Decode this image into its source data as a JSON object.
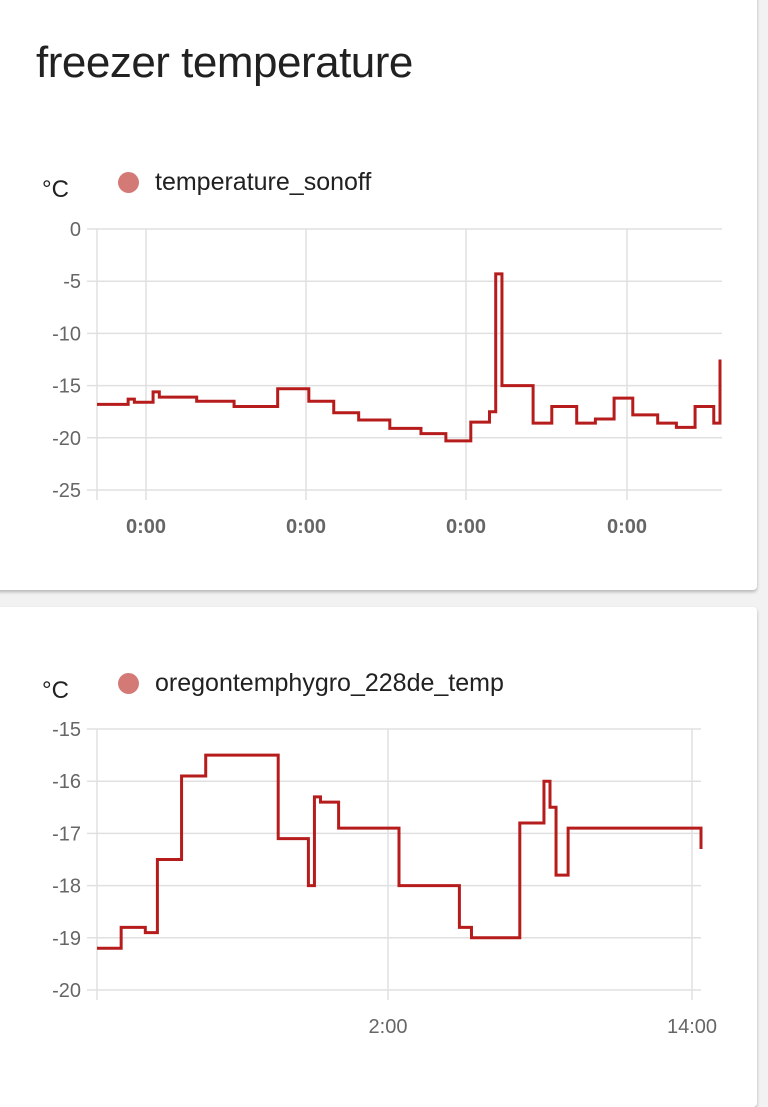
{
  "card1": {
    "title": "freezer temperature",
    "unit": "°C",
    "legend": "temperature_sonoff",
    "yticks": [
      "0",
      "-5",
      "-10",
      "-15",
      "-20",
      "-25"
    ],
    "xticks": [
      "0:00",
      "0:00",
      "0:00",
      "0:00"
    ]
  },
  "card2": {
    "unit": "°C",
    "legend": "oregontemphygro_228de_temp",
    "yticks": [
      "-15",
      "-16",
      "-17",
      "-18",
      "-19",
      "-20"
    ],
    "xticks": [
      "2:00",
      "14:00"
    ]
  },
  "colors": {
    "line": "#b71c1c",
    "legend_dot": "#d47a76",
    "grid": "#e0e0e0"
  },
  "chart_data": [
    {
      "type": "line",
      "title": "freezer temperature",
      "series": [
        {
          "name": "temperature_sonoff",
          "color": "#b71c1c",
          "x_frac": [
            0.0,
            0.04,
            0.05,
            0.06,
            0.09,
            0.1,
            0.16,
            0.22,
            0.29,
            0.34,
            0.38,
            0.42,
            0.47,
            0.52,
            0.56,
            0.6,
            0.63,
            0.64,
            0.65,
            0.7,
            0.73,
            0.77,
            0.8,
            0.83,
            0.86,
            0.9,
            0.93,
            0.96,
            0.99,
            1.0
          ],
          "values": [
            -16.8,
            -16.8,
            -16.3,
            -16.6,
            -15.6,
            -16.1,
            -16.5,
            -17.0,
            -15.3,
            -16.5,
            -17.6,
            -18.3,
            -19.1,
            -19.6,
            -20.3,
            -18.5,
            -17.5,
            -4.3,
            -15.0,
            -18.6,
            -17.0,
            -18.6,
            -18.2,
            -16.2,
            -17.8,
            -18.6,
            -19.0,
            -17.0,
            -18.6,
            -12.5
          ]
        }
      ],
      "ylabel": "°C",
      "ylim": [
        -25,
        0
      ],
      "yticks": [
        0,
        -5,
        -10,
        -15,
        -20,
        -25
      ],
      "xticklabels": [
        "0:00",
        "0:00",
        "0:00",
        "0:00"
      ],
      "grid": true,
      "legend_position": "top"
    },
    {
      "type": "line",
      "series": [
        {
          "name": "oregontemphygro_228de_temp",
          "color": "#b71c1c",
          "x_frac": [
            0.0,
            0.02,
            0.04,
            0.08,
            0.1,
            0.14,
            0.18,
            0.22,
            0.3,
            0.35,
            0.36,
            0.37,
            0.4,
            0.5,
            0.6,
            0.62,
            0.65,
            0.7,
            0.74,
            0.75,
            0.76,
            0.78,
            1.0
          ],
          "values": [
            -19.2,
            -19.2,
            -18.8,
            -18.9,
            -17.5,
            -15.9,
            -15.5,
            -15.5,
            -17.1,
            -18.0,
            -16.3,
            -16.4,
            -16.9,
            -18.0,
            -18.8,
            -19.0,
            -19.0,
            -16.8,
            -16.0,
            -16.5,
            -17.8,
            -16.9,
            -17.3
          ]
        }
      ],
      "ylabel": "°C",
      "ylim": [
        -20,
        -15
      ],
      "yticks": [
        -15,
        -16,
        -17,
        -18,
        -19,
        -20
      ],
      "xticklabels": [
        "2:00",
        "14:00"
      ],
      "grid": true,
      "legend_position": "top"
    }
  ]
}
